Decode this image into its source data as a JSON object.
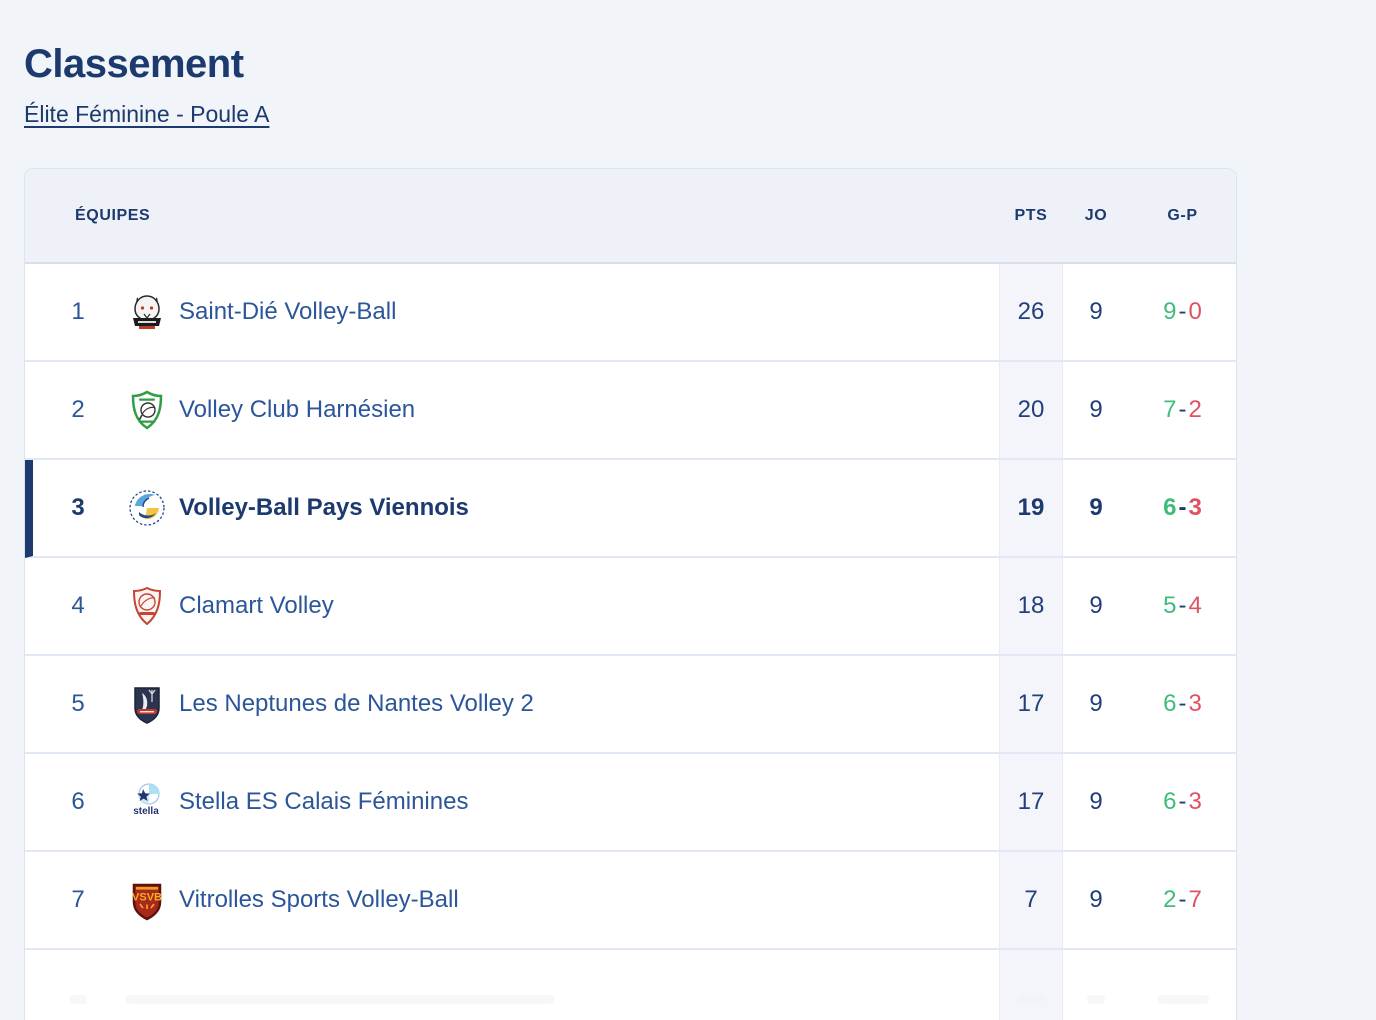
{
  "page": {
    "title": "Classement",
    "subtitle": "Élite Féminine - Poule A"
  },
  "table": {
    "headers": {
      "teams": "ÉQUIPES",
      "pts": "PTS",
      "jo": "JO",
      "gp": "G-P"
    },
    "gp_separator": "-",
    "rows": [
      {
        "rank": "1",
        "name": "Saint-Dié Volley-Ball",
        "logo": "saint-die-wolf-badge",
        "pts": "26",
        "jo": "9",
        "wins": "9",
        "losses": "0",
        "highlighted": false
      },
      {
        "rank": "2",
        "name": "Volley Club Harnésien",
        "logo": "harnes-green-shield",
        "pts": "20",
        "jo": "9",
        "wins": "7",
        "losses": "2",
        "highlighted": false
      },
      {
        "rank": "3",
        "name": "Volley-Ball Pays Viennois",
        "logo": "vienne-blue-yellow-roundel",
        "pts": "19",
        "jo": "9",
        "wins": "6",
        "losses": "3",
        "highlighted": true
      },
      {
        "rank": "4",
        "name": "Clamart Volley",
        "logo": "clamart-red-crest",
        "pts": "18",
        "jo": "9",
        "wins": "5",
        "losses": "4",
        "highlighted": false
      },
      {
        "rank": "5",
        "name": "Les Neptunes de Nantes Volley 2",
        "logo": "neptunes-navy-shield",
        "pts": "17",
        "jo": "9",
        "wins": "6",
        "losses": "3",
        "highlighted": false
      },
      {
        "rank": "6",
        "name": "Stella ES Calais Féminines",
        "logo": "stella-calais-star-ball",
        "logo_text": "stella",
        "pts": "17",
        "jo": "9",
        "wins": "6",
        "losses": "3",
        "highlighted": false
      },
      {
        "rank": "7",
        "name": "Vitrolles Sports Volley-Ball",
        "logo": "vitrolles-red-gold-shield",
        "logo_text": "VSVB",
        "pts": "7",
        "jo": "9",
        "wins": "2",
        "losses": "7",
        "highlighted": false
      }
    ],
    "partial_row_visible": true
  },
  "colors": {
    "page_background": "#f1f4f8",
    "accent_navy": "#1d3a6e",
    "link_blue": "#2b5699",
    "win_green": "#3fbc7c",
    "loss_red": "#e05263",
    "pts_band": "#f3f5fa"
  }
}
